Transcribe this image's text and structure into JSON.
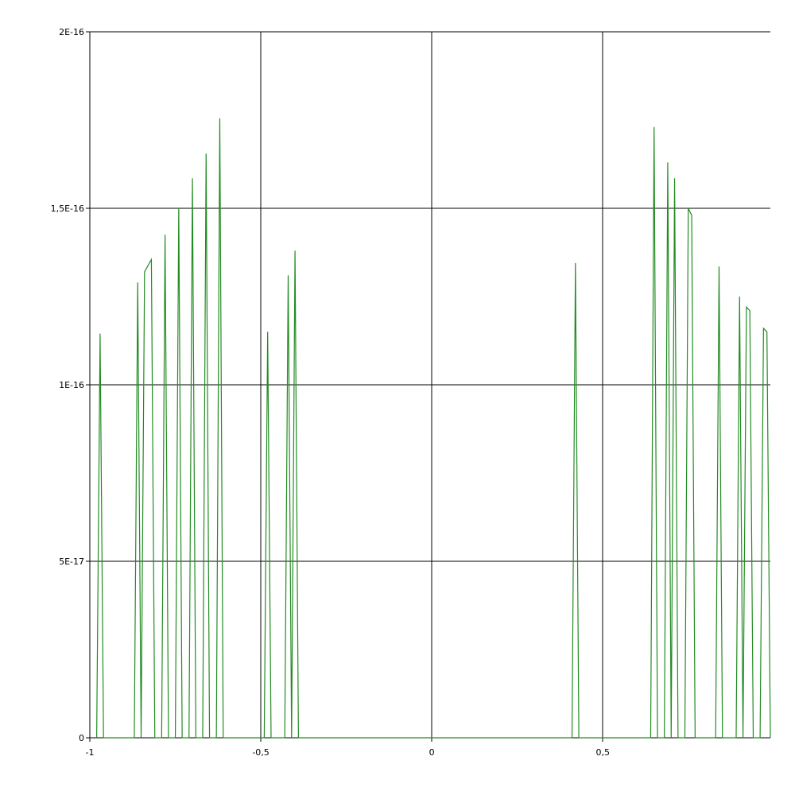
{
  "chart_data": {
    "type": "line",
    "title": "",
    "xlabel": "",
    "ylabel": "",
    "xlim": [
      -1,
      0.99
    ],
    "ylim": [
      0,
      2e-16
    ],
    "grid": true,
    "legend": "none",
    "x_ticks": [
      {
        "value": -1,
        "label": "-1"
      },
      {
        "value": -0.5,
        "label": "-0,5"
      },
      {
        "value": 0,
        "label": "0"
      },
      {
        "value": 0.5,
        "label": "0,5"
      }
    ],
    "y_ticks": [
      {
        "value": 0,
        "label": "0"
      },
      {
        "value": 5e-17,
        "label": "5E-17"
      },
      {
        "value": 1e-16,
        "label": "1E-16"
      },
      {
        "value": 1.5e-16,
        "label": "1,5E-16"
      },
      {
        "value": 2e-16,
        "label": "2E-16"
      }
    ],
    "series": [
      {
        "color": "#228b22",
        "points": [
          [
            -0.98,
            0
          ],
          [
            -0.97,
            1.145e-16
          ],
          [
            -0.96,
            0
          ],
          [
            -0.87,
            0
          ],
          [
            -0.86,
            1.29e-16
          ],
          [
            -0.85,
            0
          ],
          [
            -0.84,
            1.32e-16
          ],
          [
            -0.82,
            1.355e-16
          ],
          [
            -0.81,
            0
          ],
          [
            -0.79,
            0
          ],
          [
            -0.78,
            1.425e-16
          ],
          [
            -0.77,
            0
          ],
          [
            -0.75,
            0
          ],
          [
            -0.74,
            1.5e-16
          ],
          [
            -0.73,
            0
          ],
          [
            -0.71,
            0
          ],
          [
            -0.7,
            1.585e-16
          ],
          [
            -0.69,
            0
          ],
          [
            -0.67,
            0
          ],
          [
            -0.66,
            1.655e-16
          ],
          [
            -0.65,
            0
          ],
          [
            -0.63,
            0
          ],
          [
            -0.62,
            1.755e-16
          ],
          [
            -0.61,
            0
          ],
          [
            -0.49,
            0
          ],
          [
            -0.48,
            1.15e-16
          ],
          [
            -0.47,
            0
          ],
          [
            -0.43,
            0
          ],
          [
            -0.42,
            1.31e-16
          ],
          [
            -0.41,
            0
          ],
          [
            -0.4,
            1.38e-16
          ],
          [
            -0.39,
            0
          ],
          [
            0.41,
            0
          ],
          [
            0.42,
            1.345e-16
          ],
          [
            0.43,
            0
          ],
          [
            0.64,
            0
          ],
          [
            0.65,
            1.73e-16
          ],
          [
            0.66,
            0
          ],
          [
            0.68,
            0
          ],
          [
            0.69,
            1.63e-16
          ],
          [
            0.7,
            0
          ],
          [
            0.71,
            1.585e-16
          ],
          [
            0.72,
            0
          ],
          [
            0.74,
            0
          ],
          [
            0.75,
            1.5e-16
          ],
          [
            0.76,
            1.48e-16
          ],
          [
            0.77,
            0
          ],
          [
            0.83,
            0
          ],
          [
            0.84,
            1.335e-16
          ],
          [
            0.85,
            0
          ],
          [
            0.89,
            0
          ],
          [
            0.9,
            1.25e-16
          ],
          [
            0.91,
            0
          ],
          [
            0.92,
            1.22e-16
          ],
          [
            0.93,
            1.21e-16
          ],
          [
            0.94,
            0
          ],
          [
            0.96,
            0
          ],
          [
            0.97,
            1.16e-16
          ],
          [
            0.98,
            1.15e-16
          ],
          [
            0.99,
            0
          ]
        ]
      }
    ]
  }
}
